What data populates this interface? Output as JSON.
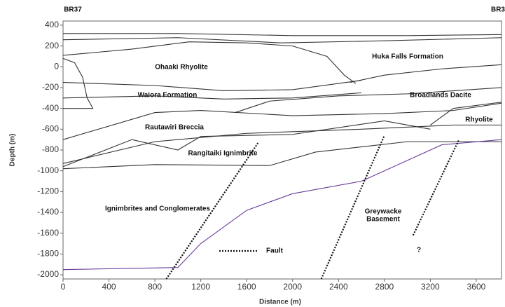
{
  "chart_data": {
    "type": "cross-section",
    "xlabel": "Distance (m)",
    "ylabel": "Depth (m)",
    "wells": [
      "BR37",
      "BR3"
    ],
    "xlim": [
      0,
      3820
    ],
    "ylim": [
      -2040,
      440
    ],
    "xticks": [
      0,
      400,
      800,
      1200,
      1600,
      2000,
      2400,
      2800,
      3200,
      3600
    ],
    "yticks": [
      400,
      200,
      0,
      -200,
      -400,
      -600,
      -800,
      -1000,
      -1200,
      -1400,
      -1600,
      -1800,
      -2000
    ],
    "annotations": [
      "Ohaaki Rhyolite",
      "Huka Falls Formation",
      "Waiora Formation",
      "Broadlands Dacite",
      "Rautawiri Breccia",
      "Rhyolite",
      "Rangitaiki Ignimbrite",
      "Ignimbrites and Conglomerates",
      "Greywacke",
      "Basement",
      "Fault",
      "?"
    ],
    "series": [
      {
        "color": "#333333",
        "x": [
          0,
          1000,
          2000,
          3000,
          3820
        ],
        "values": [
          320,
          320,
          300,
          300,
          310
        ]
      },
      {
        "color": "#333333",
        "x": [
          0,
          1000,
          1900,
          2800,
          3820
        ],
        "values": [
          260,
          280,
          230,
          250,
          280
        ]
      },
      {
        "color": "#333333",
        "x": [
          0,
          600,
          1100,
          1600,
          2000,
          2300,
          2450,
          2550
        ],
        "values": [
          110,
          170,
          240,
          230,
          200,
          100,
          -80,
          -160
        ]
      },
      {
        "color": "#333333",
        "x": [
          2500,
          2800,
          3300,
          3820
        ],
        "values": [
          -150,
          -80,
          -20,
          20
        ]
      },
      {
        "color": "#333333",
        "x": [
          0,
          800,
          1400,
          2000,
          2600
        ],
        "values": [
          -150,
          -180,
          -230,
          -220,
          -130
        ]
      },
      {
        "color": "#333333",
        "x": [
          0,
          100,
          170,
          210,
          260,
          0
        ],
        "values": [
          80,
          40,
          -100,
          -300,
          -400,
          -400
        ]
      },
      {
        "color": "#333333",
        "x": [
          0,
          800,
          1400,
          2000,
          2600
        ],
        "values": [
          -300,
          -280,
          -310,
          -300,
          -250
        ]
      },
      {
        "color": "#333333",
        "x": [
          1500,
          1800,
          2400,
          3000,
          3820
        ],
        "values": [
          -440,
          -330,
          -280,
          -260,
          -200
        ]
      },
      {
        "color": "#333333",
        "x": [
          0,
          800,
          1200,
          2000,
          2800,
          3400,
          3820
        ],
        "values": [
          -700,
          -440,
          -420,
          -470,
          -450,
          -420,
          -350
        ]
      },
      {
        "color": "#333333",
        "x": [
          0,
          600,
          1000,
          1200,
          2000,
          2800,
          3200
        ],
        "values": [
          -960,
          -700,
          -800,
          -670,
          -650,
          -520,
          -600
        ]
      },
      {
        "color": "#333333",
        "x": [
          0,
          800,
          1600,
          2600,
          3400,
          3820
        ],
        "values": [
          -930,
          -720,
          -640,
          -600,
          -560,
          -560
        ]
      },
      {
        "color": "#333333",
        "x": [
          0,
          800,
          1800,
          2200,
          3000,
          3820
        ],
        "values": [
          -980,
          -940,
          -950,
          -820,
          -720,
          -720
        ]
      },
      {
        "color": "#333333",
        "x": [
          3200,
          3400,
          3820
        ],
        "values": [
          -560,
          -400,
          -340
        ]
      },
      {
        "color": "#6a3d9a",
        "x": [
          0,
          1000,
          1200,
          1600,
          2000,
          2600,
          3000,
          3300,
          3820
        ],
        "values": [
          -1950,
          -1930,
          -1700,
          -1380,
          -1220,
          -1100,
          -900,
          -750,
          -700
        ]
      },
      {
        "color": "#111111",
        "dashed": true,
        "x": [
          900,
          1700
        ],
        "values": [
          -2040,
          -730
        ]
      },
      {
        "color": "#111111",
        "dashed": true,
        "x": [
          2250,
          2800
        ],
        "values": [
          -2040,
          -660
        ]
      },
      {
        "color": "#111111",
        "dashed": true,
        "x": [
          3050,
          3450
        ],
        "values": [
          -1620,
          -700
        ]
      }
    ]
  }
}
